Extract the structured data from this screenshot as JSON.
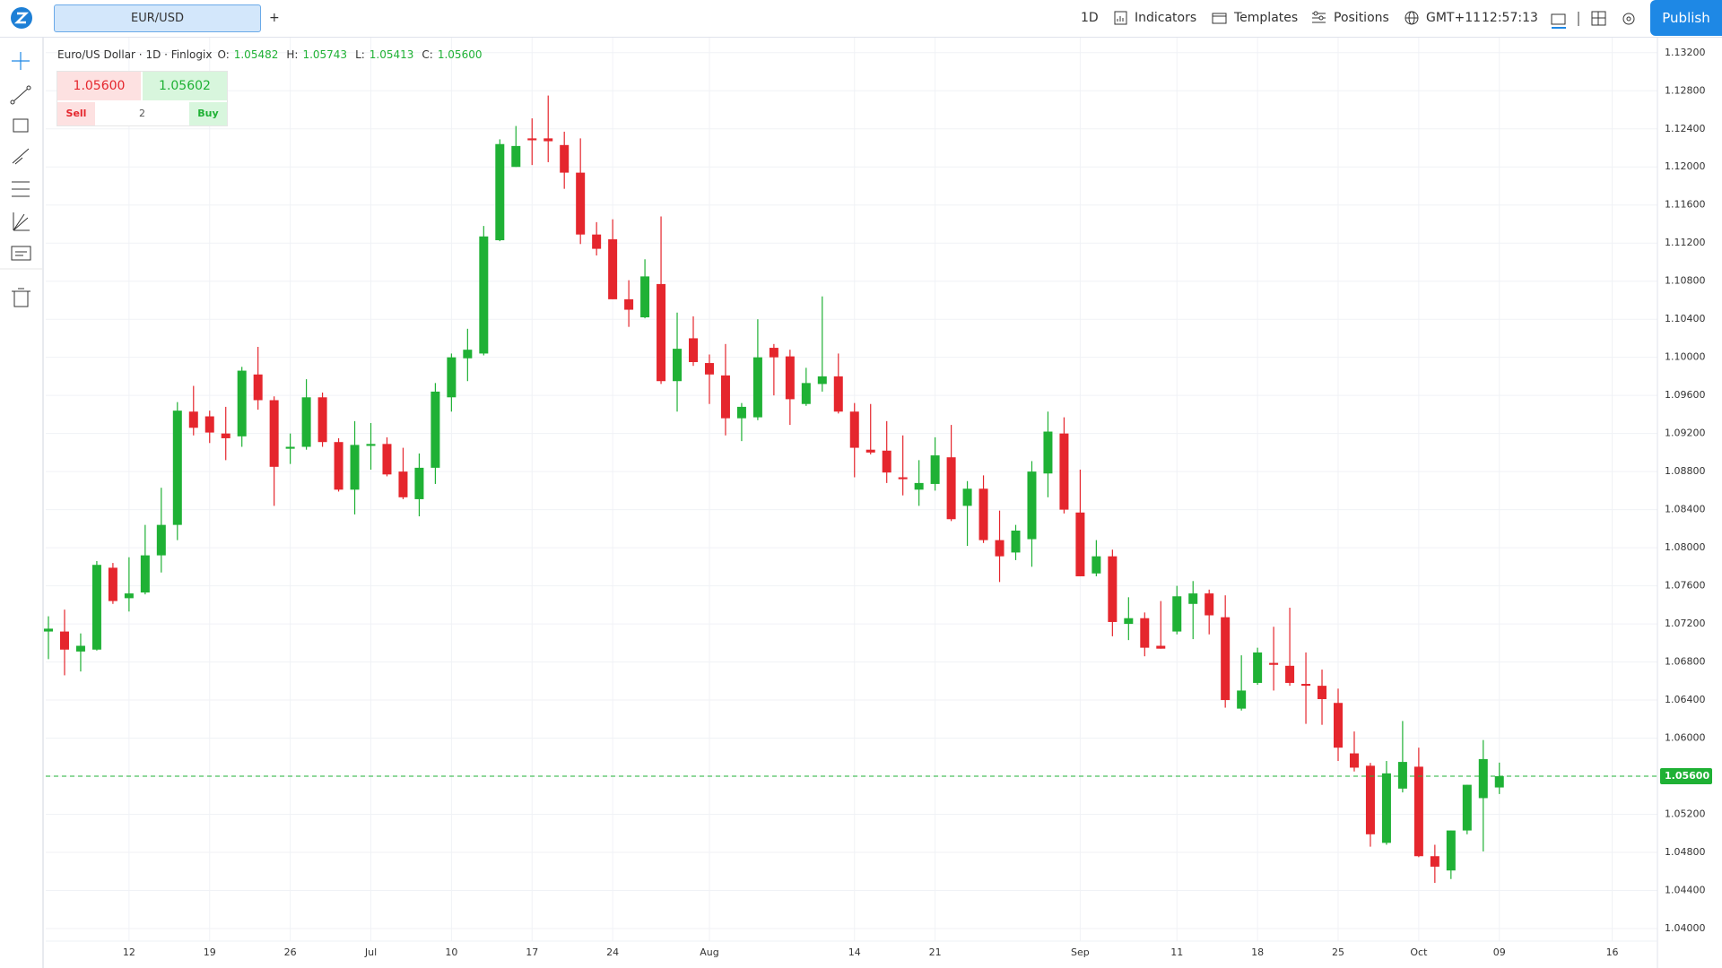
{
  "toolbar": {
    "tab": "EUR/USD",
    "add_tab": "+",
    "interval": "1D",
    "indicators": "Indicators",
    "templates": "Templates",
    "positions": "Positions",
    "timezone": "GMT+11",
    "clock": "12:57:13",
    "publish": "Publish"
  },
  "legend": {
    "title": "Euro/US Dollar · 1D · Finlogix",
    "ohlc": [
      {
        "label": "O:",
        "value": "1.05482"
      },
      {
        "label": "H:",
        "value": "1.05743"
      },
      {
        "label": "L:",
        "value": "1.05413"
      },
      {
        "label": "C:",
        "value": "1.05600"
      }
    ]
  },
  "trade_panel": {
    "sell_price": "1.05600",
    "buy_price": "1.05602",
    "sell": "Sell",
    "quantity": "2",
    "buy": "Buy"
  },
  "chart_data": {
    "type": "candlestick",
    "up_color": "#1fb135",
    "down_color": "#e5262d",
    "grid": true,
    "categories": [
      null,
      null,
      null,
      null,
      null,
      "12",
      null,
      null,
      null,
      null,
      "19",
      null,
      null,
      null,
      null,
      "26",
      null,
      null,
      null,
      null,
      "Jul",
      null,
      null,
      null,
      null,
      "10",
      null,
      null,
      null,
      null,
      "17",
      null,
      null,
      null,
      null,
      "24",
      null,
      null,
      null,
      null,
      null,
      "Aug",
      null,
      null,
      null,
      null,
      null,
      null,
      null,
      null,
      "14",
      null,
      null,
      null,
      null,
      "21",
      null,
      null,
      null,
      null,
      null,
      null,
      null,
      null,
      "Sep",
      null,
      null,
      null,
      null,
      null,
      "11",
      null,
      null,
      null,
      null,
      "18",
      null,
      null,
      null,
      null,
      "25",
      null,
      null,
      null,
      null,
      "Oct",
      null,
      null,
      null,
      null,
      "09",
      null,
      null,
      null,
      null,
      null,
      null,
      "16"
    ],
    "open": [
      1.0712,
      1.0712,
      1.0691,
      1.0693,
      1.0779,
      1.0747,
      1.0753,
      1.0792,
      1.0824,
      1.0943,
      1.0938,
      1.092,
      1.0917,
      1.0982,
      1.0955,
      1.0904,
      1.0906,
      1.0958,
      1.0911,
      1.0861,
      1.0907,
      1.0909,
      1.088,
      1.0851,
      1.0884,
      1.0958,
      1.0999,
      1.1004,
      1.1123,
      1.12,
      1.123,
      1.123,
      1.1223,
      1.1194,
      1.1129,
      1.1124,
      1.1061,
      1.1042,
      1.1077,
      1.0975,
      1.102,
      1.0994,
      1.0981,
      1.0936,
      1.0937,
      1.101,
      1.1001,
      1.0951,
      1.0972,
      1.098,
      1.0943,
      1.0903,
      1.0902,
      1.0874,
      1.0861,
      1.0867,
      1.0895,
      1.0844,
      1.0862,
      1.0808,
      1.0795,
      1.0809,
      1.0878,
      1.092,
      1.0837,
      1.0773,
      1.0791,
      1.072,
      1.0726,
      1.0697,
      1.0712,
      1.0741,
      1.0752,
      1.0727,
      1.0631,
      1.0658,
      1.0679,
      1.0676,
      1.0657,
      1.0655,
      1.0637,
      1.0584,
      1.0571,
      1.049,
      1.0547,
      1.057,
      1.0476,
      1.0461,
      1.0503,
      1.0537,
      1.05482,
      null,
      null,
      null,
      null,
      null,
      null,
      null
    ],
    "high": [
      1.0728,
      1.0735,
      1.071,
      1.0786,
      1.0784,
      1.079,
      1.0824,
      1.0863,
      1.0953,
      1.097,
      1.0944,
      1.0948,
      1.099,
      1.1011,
      1.0959,
      1.092,
      1.0977,
      1.0963,
      1.0915,
      1.0933,
      1.0931,
      1.0916,
      1.0905,
      1.0899,
      1.0973,
      1.1004,
      1.103,
      1.1138,
      1.1229,
      1.1243,
      1.1251,
      1.1275,
      1.1237,
      1.123,
      1.1142,
      1.1145,
      1.1081,
      1.1103,
      1.1148,
      1.1047,
      1.1043,
      1.1003,
      1.1014,
      1.0952,
      1.104,
      1.1014,
      1.1008,
      1.0989,
      1.1064,
      1.1004,
      1.0952,
      1.0951,
      1.0933,
      1.0918,
      1.0892,
      1.0916,
      1.0929,
      1.087,
      1.0876,
      1.0839,
      1.0824,
      1.0891,
      1.0943,
      1.0937,
      1.0882,
      1.0808,
      1.0798,
      1.0748,
      1.0732,
      1.0744,
      1.076,
      1.0765,
      1.0756,
      1.075,
      1.0687,
      1.0695,
      1.0717,
      1.0737,
      1.069,
      1.0672,
      1.0652,
      1.0607,
      1.0574,
      1.0576,
      1.0618,
      1.059,
      1.0488,
      1.0503,
      1.0551,
      1.0598,
      1.05743,
      null,
      null,
      null,
      null,
      null,
      null,
      null
    ],
    "low": [
      1.0683,
      1.0666,
      1.067,
      1.0692,
      1.0741,
      1.0733,
      1.0751,
      1.0774,
      1.0808,
      1.0918,
      1.091,
      1.0892,
      1.0906,
      1.0945,
      1.0844,
      1.0888,
      1.0903,
      1.0906,
      1.0859,
      1.0835,
      1.0882,
      1.0875,
      1.0851,
      1.0833,
      1.0867,
      1.0943,
      1.0975,
      1.1002,
      1.1122,
      1.12,
      1.1202,
      1.1205,
      1.1177,
      1.1119,
      1.1107,
      1.1061,
      1.1032,
      1.1041,
      1.0972,
      1.0943,
      1.0991,
      1.0951,
      1.0918,
      1.0912,
      1.0934,
      1.096,
      1.0929,
      1.0949,
      1.0964,
      1.0941,
      1.0874,
      1.0898,
      1.0868,
      1.0855,
      1.0844,
      1.086,
      1.0828,
      1.0802,
      1.0805,
      1.0764,
      1.0787,
      1.078,
      1.0853,
      1.0836,
      1.077,
      1.077,
      1.0707,
      1.0703,
      1.0686,
      1.0694,
      1.0709,
      1.0704,
      1.0709,
      1.0632,
      1.0629,
      1.0656,
      1.065,
      1.0655,
      1.0615,
      1.0614,
      1.0576,
      1.0565,
      1.0486,
      1.0488,
      1.0543,
      1.0475,
      1.0448,
      1.0452,
      1.0499,
      1.0481,
      1.05413,
      null,
      null,
      null,
      null,
      null,
      null,
      null
    ],
    "close": [
      1.0715,
      1.0693,
      1.0697,
      1.0782,
      1.0744,
      1.0752,
      1.0792,
      1.0824,
      1.0944,
      1.0926,
      1.0921,
      1.0915,
      1.0986,
      1.0955,
      1.0885,
      1.0906,
      1.0958,
      1.0911,
      1.0861,
      1.0908,
      1.0909,
      1.0877,
      1.0853,
      1.0884,
      1.0964,
      1.1,
      1.1008,
      1.1127,
      1.1224,
      1.1222,
      1.1228,
      1.1227,
      1.1194,
      1.1129,
      1.1114,
      1.1061,
      1.105,
      1.1085,
      1.0975,
      1.1009,
      1.0995,
      1.0982,
      1.0936,
      1.0948,
      1.1,
      1.1,
      1.0956,
      1.0973,
      1.098,
      1.0943,
      1.0905,
      1.09,
      1.0879,
      1.0872,
      1.0868,
      1.0897,
      1.083,
      1.0862,
      1.0808,
      1.0791,
      1.0818,
      1.088,
      1.0922,
      1.084,
      1.077,
      1.0791,
      1.0722,
      1.0726,
      1.0695,
      1.0694,
      1.0749,
      1.0752,
      1.0729,
      1.064,
      1.065,
      1.069,
      1.0677,
      1.0658,
      1.0655,
      1.0641,
      1.059,
      1.0569,
      1.0499,
      1.0563,
      1.0575,
      1.0476,
      1.0465,
      1.0503,
      1.0551,
      1.0578,
      1.056,
      null,
      null,
      null,
      null,
      null,
      null,
      null
    ],
    "ylim": [
      1.03868,
      1.13358
    ],
    "yticks": [
      {
        "value": 1.04,
        "label": "1.04000"
      },
      {
        "value": 1.044,
        "label": "1.04400"
      },
      {
        "value": 1.048,
        "label": "1.04800"
      },
      {
        "value": 1.052,
        "label": "1.05200"
      },
      {
        "value": 1.056,
        "label": "1.05600"
      },
      {
        "value": 1.06,
        "label": "1.06000"
      },
      {
        "value": 1.064,
        "label": "1.06400"
      },
      {
        "value": 1.068,
        "label": "1.06800"
      },
      {
        "value": 1.072,
        "label": "1.07200"
      },
      {
        "value": 1.076,
        "label": "1.07600"
      },
      {
        "value": 1.08,
        "label": "1.08000"
      },
      {
        "value": 1.084,
        "label": "1.08400"
      },
      {
        "value": 1.088,
        "label": "1.08800"
      },
      {
        "value": 1.092,
        "label": "1.09200"
      },
      {
        "value": 1.096,
        "label": "1.09600"
      },
      {
        "value": 1.1,
        "label": "1.10000"
      },
      {
        "value": 1.104,
        "label": "1.10400"
      },
      {
        "value": 1.108,
        "label": "1.10800"
      },
      {
        "value": 1.112,
        "label": "1.11200"
      },
      {
        "value": 1.116,
        "label": "1.11600"
      },
      {
        "value": 1.12,
        "label": "1.12000"
      },
      {
        "value": 1.124,
        "label": "1.12400"
      },
      {
        "value": 1.128,
        "label": "1.12800"
      },
      {
        "value": 1.132,
        "label": "1.13200"
      }
    ],
    "last_price": {
      "value": 1.056,
      "label": "1.05600"
    },
    "last_price_color": "#1fb135"
  }
}
